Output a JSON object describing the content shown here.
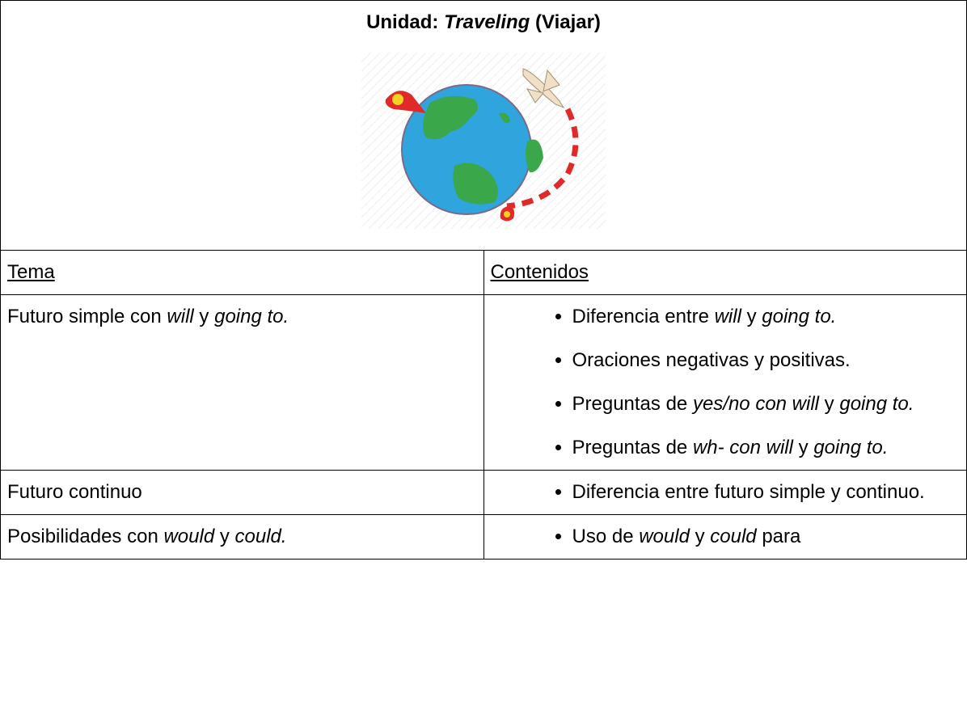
{
  "header": {
    "title": [
      {
        "text": "Unidad: "
      },
      {
        "text": "Traveling",
        "italic": true
      },
      {
        "text": " (Viajar)"
      }
    ]
  },
  "table": {
    "columns": [
      "Tema",
      "Contenidos"
    ],
    "rows": [
      {
        "topic": [
          {
            "text": "Futuro simple con "
          },
          {
            "text": "will",
            "italic": true
          },
          {
            "text": " y "
          },
          {
            "text": "going to.",
            "italic": true
          }
        ],
        "contents": [
          [
            {
              "text": "Diferencia entre "
            },
            {
              "text": "will",
              "italic": true
            },
            {
              "text": " y "
            },
            {
              "text": "going to.",
              "italic": true
            }
          ],
          [
            {
              "text": "Oraciones negativas y positivas."
            }
          ],
          [
            {
              "text": "Preguntas de "
            },
            {
              "text": "yes/no con will",
              "italic": true
            },
            {
              "text": " y "
            },
            {
              "text": "going to.",
              "italic": true
            }
          ],
          [
            {
              "text": "Preguntas de "
            },
            {
              "text": "wh- con will",
              "italic": true
            },
            {
              "text": " y "
            },
            {
              "text": "going to.",
              "italic": true
            }
          ]
        ]
      },
      {
        "topic": [
          {
            "text": "Futuro continuo"
          }
        ],
        "contents": [
          [
            {
              "text": "Diferencia entre futuro simple y continuo."
            }
          ]
        ]
      },
      {
        "topic": [
          {
            "text": "Posibilidades con "
          },
          {
            "text": "would",
            "italic": true
          },
          {
            "text": " y "
          },
          {
            "text": "could.",
            "italic": true
          }
        ],
        "contents": [
          [
            {
              "text": "Uso de "
            },
            {
              "text": "would",
              "italic": true
            },
            {
              "text": " y "
            },
            {
              "text": "could",
              "italic": true
            },
            {
              "text": " para"
            }
          ]
        ]
      }
    ]
  }
}
